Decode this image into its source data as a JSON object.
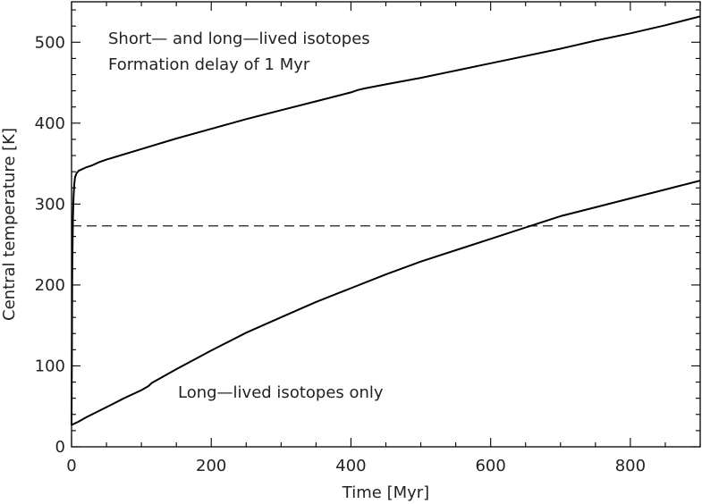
{
  "chart_data": {
    "type": "line",
    "xlabel": "Time [Myr]",
    "ylabel": "Central temperature [K]",
    "xlim": [
      0,
      900
    ],
    "ylim": [
      0,
      550
    ],
    "xticks": [
      0,
      200,
      400,
      600,
      800
    ],
    "yticks": [
      0,
      100,
      200,
      300,
      400,
      500
    ],
    "x_minor_step": 50,
    "y_minor_step": 20,
    "grid": false,
    "series": [
      {
        "x": [
          0,
          1,
          2,
          3,
          4,
          5,
          7,
          10,
          15,
          20,
          30,
          40,
          50,
          100,
          150,
          200,
          250,
          300,
          350,
          400,
          410,
          420,
          450,
          500,
          550,
          600,
          650,
          700,
          750,
          800,
          850,
          900
        ],
        "y": [
          27,
          220,
          285,
          310,
          325,
          333,
          338,
          341,
          343,
          345,
          348,
          352,
          355,
          368,
          381,
          393,
          405,
          416,
          427,
          438,
          441,
          443,
          448,
          456,
          465,
          474,
          483,
          492,
          502,
          511,
          521,
          532
        ]
      },
      {
        "x": [
          0,
          5,
          10,
          20,
          50,
          75,
          100,
          110,
          115,
          150,
          200,
          250,
          300,
          350,
          400,
          450,
          500,
          550,
          600,
          650,
          700,
          750,
          800,
          850,
          900
        ],
        "y": [
          27,
          29,
          31,
          36,
          49,
          60,
          70,
          75,
          79,
          96,
          119,
          141,
          160,
          179,
          196,
          213,
          229,
          243,
          257,
          271,
          285,
          296,
          307,
          318,
          329
        ]
      }
    ],
    "reference_lines": [
      {
        "orientation": "horizontal",
        "y": 273,
        "style": "dashed"
      }
    ],
    "annotations": [
      {
        "text": "Short— and long—lived isotopes"
      },
      {
        "text": "Formation delay of 1 Myr"
      },
      {
        "text": "Long—lived isotopes only"
      }
    ]
  }
}
